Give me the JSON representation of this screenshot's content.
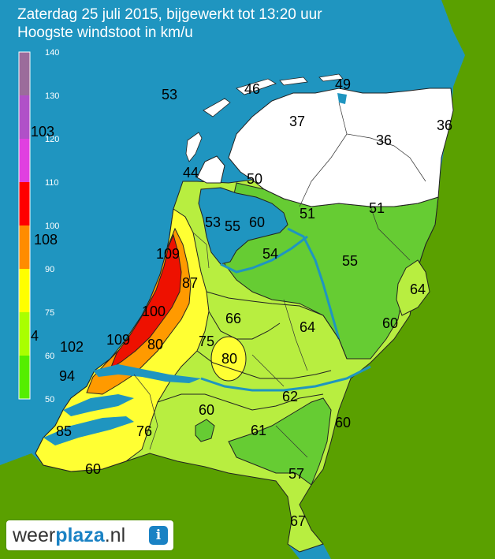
{
  "title": "Zaterdag 25 juli 2015, bijgewerkt tot 13:20 uur",
  "subtitle": "Hoogste windstoot in km/u",
  "legend": {
    "ticks": [
      "140",
      "130",
      "120",
      "110",
      "100",
      "90",
      "75",
      "60",
      "50"
    ],
    "colors": [
      "#9b6c9b",
      "#b050c8",
      "#e040e0",
      "#ff0000",
      "#ff8c00",
      "#ffff00",
      "#aaff00",
      "#55ee00"
    ]
  },
  "colors": {
    "sea": "#1f95c0",
    "land": "#5aa000",
    "white_zone": "#ffffff",
    "green_zone": "#66cc33",
    "light_green_zone": "#b8ee40",
    "yellow_zone": "#ffff33",
    "orange_zone": "#ff9a00",
    "red_zone": "#ee1100"
  },
  "values": [
    {
      "id": "v53-sea",
      "text": "53"
    },
    {
      "id": "v46",
      "text": "46"
    },
    {
      "id": "v49",
      "text": "49"
    },
    {
      "id": "v37",
      "text": "37"
    },
    {
      "id": "v36a",
      "text": "36"
    },
    {
      "id": "v36b",
      "text": "36"
    },
    {
      "id": "v103",
      "text": "103"
    },
    {
      "id": "v44",
      "text": "44"
    },
    {
      "id": "v50",
      "text": "50"
    },
    {
      "id": "v51a",
      "text": "51"
    },
    {
      "id": "v51b",
      "text": "51"
    },
    {
      "id": "v53",
      "text": "53"
    },
    {
      "id": "v55a",
      "text": "55"
    },
    {
      "id": "v60a",
      "text": "60"
    },
    {
      "id": "v108",
      "text": "108"
    },
    {
      "id": "v109a",
      "text": "109"
    },
    {
      "id": "v54",
      "text": "54"
    },
    {
      "id": "v55b",
      "text": "55"
    },
    {
      "id": "v87",
      "text": "87"
    },
    {
      "id": "v64a",
      "text": "64"
    },
    {
      "id": "v100",
      "text": "100"
    },
    {
      "id": "v66",
      "text": "66"
    },
    {
      "id": "v64b",
      "text": "64"
    },
    {
      "id": "v60b",
      "text": "60"
    },
    {
      "id": "v4",
      "text": "4"
    },
    {
      "id": "v109b",
      "text": "109"
    },
    {
      "id": "v80a",
      "text": "80"
    },
    {
      "id": "v75",
      "text": "75"
    },
    {
      "id": "v102",
      "text": "102"
    },
    {
      "id": "v80b",
      "text": "80"
    },
    {
      "id": "v94",
      "text": "94"
    },
    {
      "id": "v62",
      "text": "62"
    },
    {
      "id": "v60c",
      "text": "60"
    },
    {
      "id": "v60d",
      "text": "60"
    },
    {
      "id": "v85",
      "text": "85"
    },
    {
      "id": "v76",
      "text": "76"
    },
    {
      "id": "v61",
      "text": "61"
    },
    {
      "id": "v60e",
      "text": "60"
    },
    {
      "id": "v57",
      "text": "57"
    },
    {
      "id": "v67",
      "text": "67"
    }
  ],
  "logo": {
    "part1": "weer",
    "part2": "plaza",
    "part3": ".nl",
    "icon_glyph": "i"
  }
}
